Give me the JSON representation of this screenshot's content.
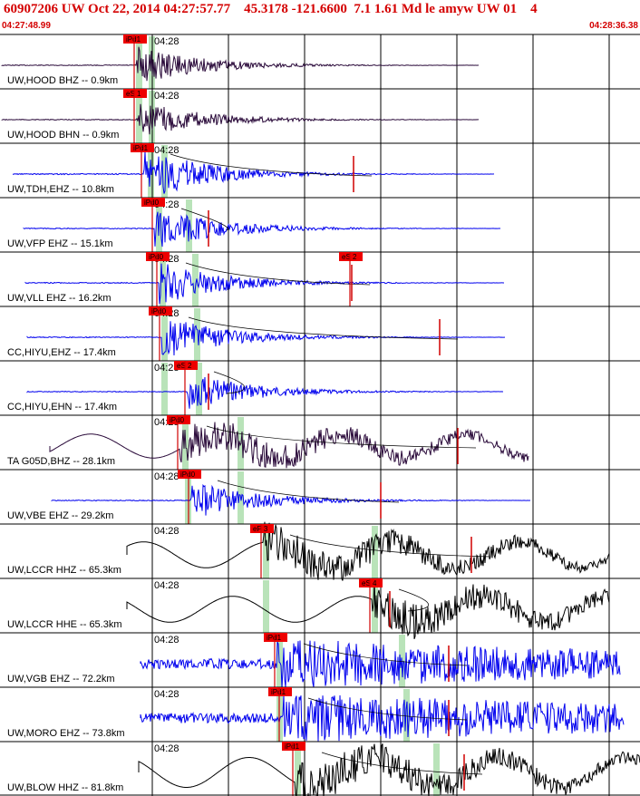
{
  "header": {
    "title": "60907206 UW Oct 22, 2014 04:27:57.77    45.3178 -121.6600  7.1 1.61 Md le amyw UW 01    4",
    "time_start": "04:27:48.99",
    "time_end": "04:28:36.38"
  },
  "tick_label": "04:28",
  "colors": {
    "title": "#d40000",
    "pick_box": "#ee0000",
    "pick_line": "#d00000",
    "green_band": "#b9e3b9",
    "trace_black": "#000000",
    "trace_blue": "#0000ee",
    "trace_dark": "#2a0a3a"
  },
  "traces": [
    {
      "label": "UW,HOOD BHZ -- 0.9km",
      "color": "dark",
      "style": "quake",
      "picks": [
        "iPd1"
      ]
    },
    {
      "label": "UW,HOOD BHN -- 0.9km",
      "color": "dark",
      "style": "quake",
      "picks": [
        "eS 1"
      ]
    },
    {
      "label": "UW,TDH,EHZ -- 10.8km",
      "color": "blue",
      "style": "quake",
      "picks": [
        "iPd1"
      ]
    },
    {
      "label": "UW,VFP EHZ -- 15.1km",
      "color": "blue",
      "style": "quake",
      "picks": [
        "iPd0"
      ]
    },
    {
      "label": "UW,VLL EHZ -- 16.2km",
      "color": "blue",
      "style": "quake",
      "picks": [
        "iPd0",
        "eS 2"
      ]
    },
    {
      "label": "CC,HIYU,EHZ -- 17.4km",
      "color": "blue",
      "style": "quake",
      "picks": [
        "iPd0"
      ]
    },
    {
      "label": "CC,HIYU,EHN -- 17.4km",
      "color": "blue",
      "style": "quake",
      "picks": [
        "eS 2"
      ]
    },
    {
      "label": "TA G05D,BHZ -- 28.1km",
      "color": "dark",
      "style": "long",
      "picks": [
        "iPd0"
      ]
    },
    {
      "label": "UW,VBE EHZ -- 29.2km",
      "color": "blue",
      "style": "quake",
      "picks": [
        "iPd0"
      ]
    },
    {
      "label": "UW,LCCR HHZ -- 65.3km",
      "color": "black",
      "style": "long",
      "picks": [
        "eP 3"
      ]
    },
    {
      "label": "UW,LCCR HHE -- 65.3km",
      "color": "black",
      "style": "long",
      "picks": [
        "eS 4"
      ]
    },
    {
      "label": "UW,VGB EHZ -- 72.2km",
      "color": "blue",
      "style": "noisy",
      "picks": [
        "iPd1"
      ]
    },
    {
      "label": "UW,MORO EHZ -- 73.8km",
      "color": "blue",
      "style": "noisy",
      "picks": [
        "iPd1"
      ]
    },
    {
      "label": "UW,BLOW HHZ -- 81.8km",
      "color": "black",
      "style": "long",
      "picks": [
        "iPd1"
      ]
    }
  ]
}
